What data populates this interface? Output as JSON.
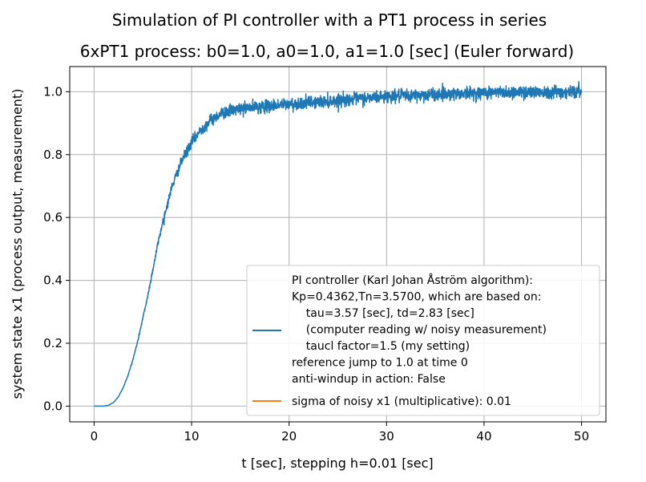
{
  "suptitle": "Simulation of PI controller with a PT1 process in series",
  "chart_data": {
    "type": "line",
    "title": "6xPT1 process: b0=1.0, a0=1.0, a1=1.0 [sec] (Euler forward)",
    "xlabel": "t [sec], stepping h=0.01 [sec]",
    "ylabel": "system state x1 (process output, measurement)",
    "xlim": [
      -2.5,
      52.5
    ],
    "ylim": [
      -0.05,
      1.08
    ],
    "x_ticks": [
      0,
      10,
      20,
      30,
      40,
      50
    ],
    "x_tick_labels": [
      "0",
      "10",
      "20",
      "30",
      "40",
      "50"
    ],
    "y_ticks": [
      0.0,
      0.2,
      0.4,
      0.6,
      0.8,
      1.0
    ],
    "y_tick_labels": [
      "0.0",
      "0.2",
      "0.4",
      "0.6",
      "0.8",
      "1.0"
    ],
    "grid": true,
    "legend_position": "lower-right",
    "series": [
      {
        "name_lines": [
          "PI controller (Karl Johan Åström algorithm):",
          "Kp=0.4362,Tn=3.5700, which are based on:",
          "  tau=3.57 [sec], td=2.83 [sec]",
          "  (computer reading w/ noisy measurement)",
          "  taucl factor=1.5 (my setting)",
          "reference jump to 1.0 at time 0",
          "anti-windup in action: False"
        ],
        "color": "#1f77b4",
        "x": [
          0,
          1,
          1.5,
          2,
          2.5,
          3,
          3.5,
          4,
          4.5,
          5,
          5.5,
          6,
          6.5,
          7,
          7.5,
          8,
          8.5,
          9,
          9.5,
          10,
          10.5,
          11,
          11.5,
          12,
          12.5,
          13,
          13.5,
          14,
          15,
          16,
          17,
          18,
          19,
          20,
          22,
          24,
          26,
          28,
          30,
          32,
          34,
          36,
          38,
          40,
          42,
          44,
          46,
          48,
          50
        ],
        "y": [
          0.0,
          0.0,
          0.003,
          0.012,
          0.03,
          0.06,
          0.1,
          0.15,
          0.21,
          0.28,
          0.35,
          0.43,
          0.51,
          0.58,
          0.64,
          0.7,
          0.74,
          0.78,
          0.81,
          0.84,
          0.86,
          0.88,
          0.895,
          0.91,
          0.92,
          0.93,
          0.935,
          0.94,
          0.945,
          0.95,
          0.952,
          0.955,
          0.958,
          0.96,
          0.965,
          0.97,
          0.975,
          0.98,
          0.985,
          0.987,
          0.99,
          0.993,
          0.995,
          0.997,
          0.998,
          0.999,
          1.0,
          1.0,
          1.0
        ],
        "noise_sigma": 0.01
      },
      {
        "name": "sigma of noisy x1 (multiplicative): 0.01",
        "color": "#ff7f0e",
        "x": [],
        "y": []
      }
    ]
  }
}
